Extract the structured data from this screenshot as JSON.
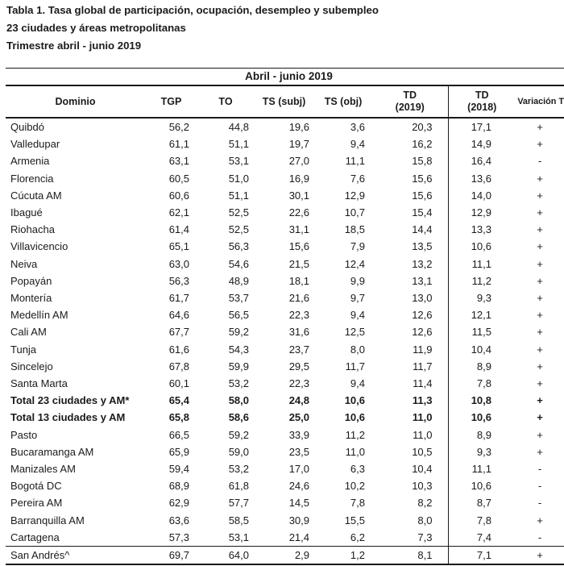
{
  "page": {
    "title_line1": "Tabla 1. Tasa global de participación, ocupación, desempleo y subempleo",
    "title_line2": "23 ciudades y áreas metropolitanas",
    "title_line3": "Trimestre abril - junio 2019"
  },
  "table": {
    "period_header": "Abril - junio 2019",
    "columns": [
      {
        "key": "dominio",
        "label": "Dominio"
      },
      {
        "key": "tgp",
        "label": "TGP"
      },
      {
        "key": "to",
        "label": "TO"
      },
      {
        "key": "ts_subj",
        "label": "TS (subj)"
      },
      {
        "key": "ts_obj",
        "label": "TS (obj)"
      },
      {
        "key": "td_2019",
        "label": "TD",
        "sub": "(2019)"
      },
      {
        "key": "td_2018",
        "label": "TD",
        "sub": "(2018)"
      },
      {
        "key": "variacion",
        "label": "Variación TD"
      }
    ],
    "rows": [
      {
        "dominio": "Quibdó",
        "tgp": "56,2",
        "to": "44,8",
        "ts_subj": "19,6",
        "ts_obj": "3,6",
        "td_2019": "20,3",
        "td_2018": "17,1",
        "variacion": "+"
      },
      {
        "dominio": "Valledupar",
        "tgp": "61,1",
        "to": "51,1",
        "ts_subj": "19,7",
        "ts_obj": "9,4",
        "td_2019": "16,2",
        "td_2018": "14,9",
        "variacion": "+"
      },
      {
        "dominio": "Armenia",
        "tgp": "63,1",
        "to": "53,1",
        "ts_subj": "27,0",
        "ts_obj": "11,1",
        "td_2019": "15,8",
        "td_2018": "16,4",
        "variacion": "-"
      },
      {
        "dominio": "Florencia",
        "tgp": "60,5",
        "to": "51,0",
        "ts_subj": "16,9",
        "ts_obj": "7,6",
        "td_2019": "15,6",
        "td_2018": "13,6",
        "variacion": "+"
      },
      {
        "dominio": "Cúcuta AM",
        "tgp": "60,6",
        "to": "51,1",
        "ts_subj": "30,1",
        "ts_obj": "12,9",
        "td_2019": "15,6",
        "td_2018": "14,0",
        "variacion": "+"
      },
      {
        "dominio": "Ibagué",
        "tgp": "62,1",
        "to": "52,5",
        "ts_subj": "22,6",
        "ts_obj": "10,7",
        "td_2019": "15,4",
        "td_2018": "12,9",
        "variacion": "+"
      },
      {
        "dominio": "Riohacha",
        "tgp": "61,4",
        "to": "52,5",
        "ts_subj": "31,1",
        "ts_obj": "18,5",
        "td_2019": "14,4",
        "td_2018": "13,3",
        "variacion": "+"
      },
      {
        "dominio": "Villavicencio",
        "tgp": "65,1",
        "to": "56,3",
        "ts_subj": "15,6",
        "ts_obj": "7,9",
        "td_2019": "13,5",
        "td_2018": "10,6",
        "variacion": "+"
      },
      {
        "dominio": "Neiva",
        "tgp": "63,0",
        "to": "54,6",
        "ts_subj": "21,5",
        "ts_obj": "12,4",
        "td_2019": "13,2",
        "td_2018": "11,1",
        "variacion": "+"
      },
      {
        "dominio": "Popayán",
        "tgp": "56,3",
        "to": "48,9",
        "ts_subj": "18,1",
        "ts_obj": "9,9",
        "td_2019": "13,1",
        "td_2018": "11,2",
        "variacion": "+"
      },
      {
        "dominio": "Montería",
        "tgp": "61,7",
        "to": "53,7",
        "ts_subj": "21,6",
        "ts_obj": "9,7",
        "td_2019": "13,0",
        "td_2018": "9,3",
        "variacion": "+"
      },
      {
        "dominio": "Medellín AM",
        "tgp": "64,6",
        "to": "56,5",
        "ts_subj": "22,3",
        "ts_obj": "9,4",
        "td_2019": "12,6",
        "td_2018": "12,1",
        "variacion": "+"
      },
      {
        "dominio": "Cali AM",
        "tgp": "67,7",
        "to": "59,2",
        "ts_subj": "31,6",
        "ts_obj": "12,5",
        "td_2019": "12,6",
        "td_2018": "11,5",
        "variacion": "+"
      },
      {
        "dominio": "Tunja",
        "tgp": "61,6",
        "to": "54,3",
        "ts_subj": "23,7",
        "ts_obj": "8,0",
        "td_2019": "11,9",
        "td_2018": "10,4",
        "variacion": "+"
      },
      {
        "dominio": "Sincelejo",
        "tgp": "67,8",
        "to": "59,9",
        "ts_subj": "29,5",
        "ts_obj": "11,7",
        "td_2019": "11,7",
        "td_2018": "8,9",
        "variacion": "+"
      },
      {
        "dominio": "Santa Marta",
        "tgp": "60,1",
        "to": "53,2",
        "ts_subj": "22,3",
        "ts_obj": "9,4",
        "td_2019": "11,4",
        "td_2018": "7,8",
        "variacion": "+"
      },
      {
        "dominio": "Total 23 ciudades y AM*",
        "tgp": "65,4",
        "to": "58,0",
        "ts_subj": "24,8",
        "ts_obj": "10,6",
        "td_2019": "11,3",
        "td_2018": "10,8",
        "variacion": "+",
        "bold": true
      },
      {
        "dominio": "Total 13 ciudades y AM",
        "tgp": "65,8",
        "to": "58,6",
        "ts_subj": "25,0",
        "ts_obj": "10,6",
        "td_2019": "11,0",
        "td_2018": "10,6",
        "variacion": "+",
        "bold": true
      },
      {
        "dominio": "Pasto",
        "tgp": "66,5",
        "to": "59,2",
        "ts_subj": "33,9",
        "ts_obj": "11,2",
        "td_2019": "11,0",
        "td_2018": "8,9",
        "variacion": "+"
      },
      {
        "dominio": "Bucaramanga AM",
        "tgp": "65,9",
        "to": "59,0",
        "ts_subj": "23,5",
        "ts_obj": "11,0",
        "td_2019": "10,5",
        "td_2018": "9,3",
        "variacion": "+"
      },
      {
        "dominio": "Manizales AM",
        "tgp": "59,4",
        "to": "53,2",
        "ts_subj": "17,0",
        "ts_obj": "6,3",
        "td_2019": "10,4",
        "td_2018": "11,1",
        "variacion": "-"
      },
      {
        "dominio": "Bogotá DC",
        "tgp": "68,9",
        "to": "61,8",
        "ts_subj": "24,6",
        "ts_obj": "10,2",
        "td_2019": "10,3",
        "td_2018": "10,6",
        "variacion": "-"
      },
      {
        "dominio": "Pereira AM",
        "tgp": "62,9",
        "to": "57,7",
        "ts_subj": "14,5",
        "ts_obj": "7,8",
        "td_2019": "8,2",
        "td_2018": "8,7",
        "variacion": "-"
      },
      {
        "dominio": "Barranquilla AM",
        "tgp": "63,6",
        "to": "58,5",
        "ts_subj": "30,9",
        "ts_obj": "15,5",
        "td_2019": "8,0",
        "td_2018": "7,8",
        "variacion": "+"
      },
      {
        "dominio": "Cartagena",
        "tgp": "57,3",
        "to": "53,1",
        "ts_subj": "21,4",
        "ts_obj": "6,2",
        "td_2019": "7,3",
        "td_2018": "7,4",
        "variacion": "-"
      },
      {
        "dominio": "San Andrés^",
        "tgp": "69,7",
        "to": "64,0",
        "ts_subj": "2,9",
        "ts_obj": "1,2",
        "td_2019": "8,1",
        "td_2018": "7,1",
        "variacion": "+",
        "rule_above": true
      }
    ]
  },
  "colors": {
    "text": "#1b1b1b",
    "line": "#1a1a1a",
    "background": "#ffffff"
  }
}
